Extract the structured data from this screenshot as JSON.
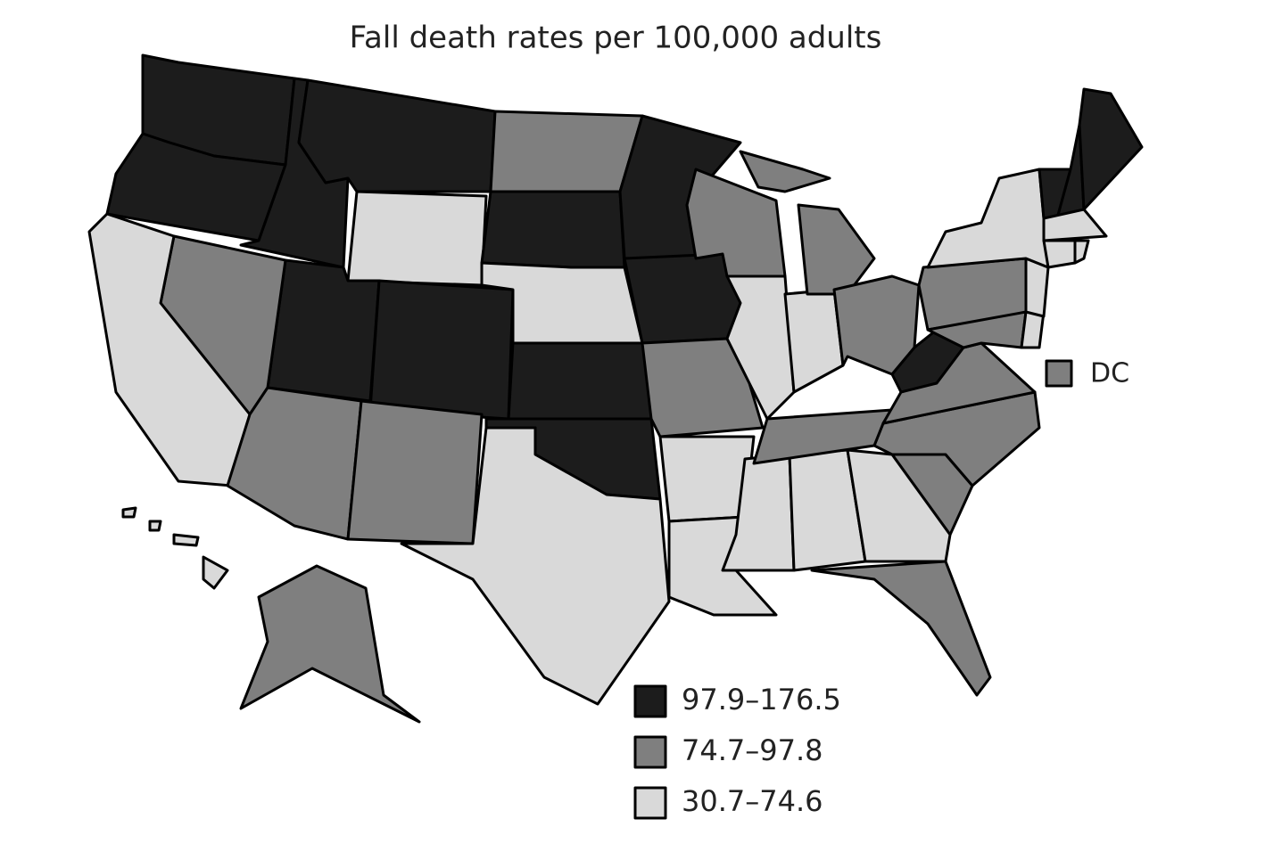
{
  "map": {
    "title": "Fall death rates per 100,000 adults",
    "legend": [
      {
        "label": "97.9–176.5",
        "color": "#1c1c1c"
      },
      {
        "label": "74.7–97.8",
        "color": "#7f7f7f"
      },
      {
        "label": "30.7–74.6",
        "color": "#d9d9d9"
      }
    ],
    "dc": {
      "label": "DC",
      "class": 1
    },
    "regions": [
      0,
      0,
      0,
      0,
      2,
      0,
      0,
      1,
      2,
      1,
      1,
      1,
      0,
      2,
      0,
      0,
      0,
      0,
      1,
      2,
      2,
      2,
      2,
      2,
      1,
      1,
      1,
      1,
      2,
      2,
      2,
      1,
      1,
      1,
      0,
      1,
      1,
      1,
      2,
      2,
      2,
      0,
      0,
      0,
      2,
      2,
      2,
      1,
      2
    ]
  }
}
